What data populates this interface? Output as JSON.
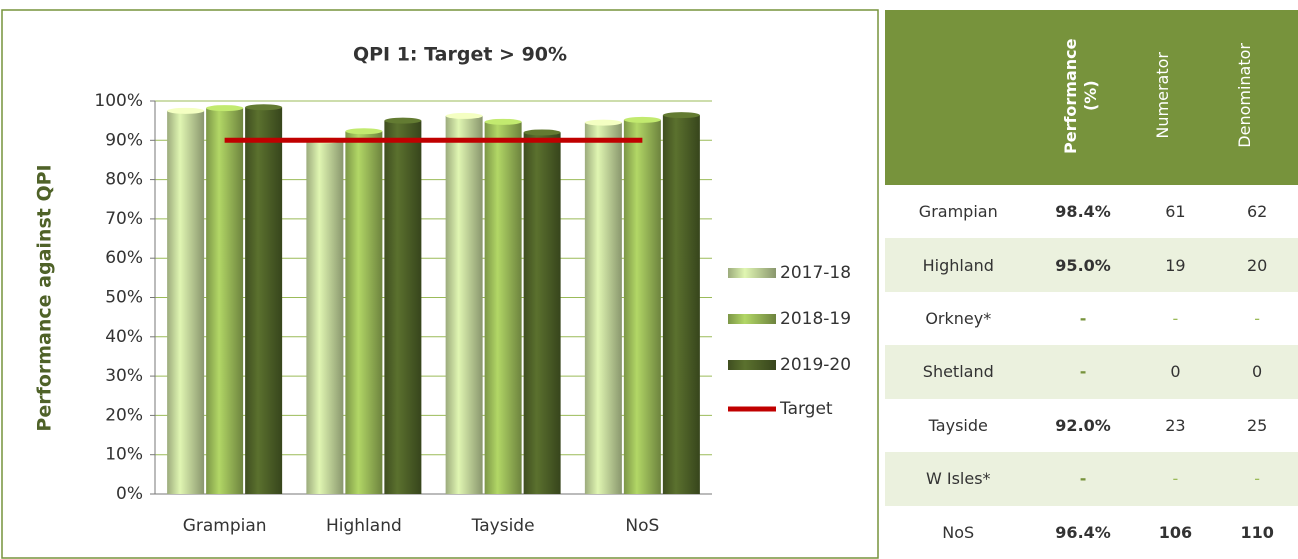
{
  "chart_data": {
    "type": "bar",
    "title": "QPI 1: Target > 90%",
    "y_label": "Performance against QPI",
    "categories": [
      "Grampian",
      "Highland",
      "Tayside",
      "NoS"
    ],
    "series": [
      {
        "name": "2017-18",
        "color": "#c3d69b",
        "values": [
          97.5,
          90,
          96.2,
          94.5
        ]
      },
      {
        "name": "2018-19",
        "color": "#9bbb59",
        "values": [
          98.2,
          92.3,
          94.7,
          95.2
        ]
      },
      {
        "name": "2019-20",
        "color": "#4f6228",
        "values": [
          98.4,
          95.0,
          92.0,
          96.4
        ]
      }
    ],
    "target": {
      "name": "Target",
      "color": "#c00000",
      "values": [
        90,
        90,
        90,
        90
      ]
    },
    "ylim": [
      0,
      100
    ],
    "yticks": [
      {
        "value": 0,
        "label": "0%"
      },
      {
        "value": 10,
        "label": "10%"
      },
      {
        "value": 20,
        "label": "20%"
      },
      {
        "value": 30,
        "label": "30%"
      },
      {
        "value": 40,
        "label": "40%"
      },
      {
        "value": 50,
        "label": "50%"
      },
      {
        "value": 60,
        "label": "60%"
      },
      {
        "value": 70,
        "label": "70%"
      },
      {
        "value": 80,
        "label": "80%"
      },
      {
        "value": 90,
        "label": "90%"
      },
      {
        "value": 100,
        "label": "100%"
      }
    ],
    "grid": true,
    "legend": "right"
  },
  "table": {
    "columns": [
      "Performance (%)",
      "Numerator",
      "Denominator"
    ],
    "rows": [
      {
        "region": "Grampian",
        "cells": [
          "98.4%",
          61,
          62
        ]
      },
      {
        "region": "Highland",
        "cells": [
          "95.0%",
          19,
          20
        ]
      },
      {
        "region": "Orkney*",
        "cells": [
          "-",
          "-",
          "-"
        ]
      },
      {
        "region": "Shetland",
        "cells": [
          "-",
          0,
          0
        ]
      },
      {
        "region": "Tayside",
        "cells": [
          "92.0%",
          23,
          25
        ]
      },
      {
        "region": "W Isles*",
        "cells": [
          "-",
          "-",
          "-"
        ]
      },
      {
        "region": "NoS",
        "cells": [
          "96.4%",
          106,
          110
        ]
      }
    ]
  }
}
